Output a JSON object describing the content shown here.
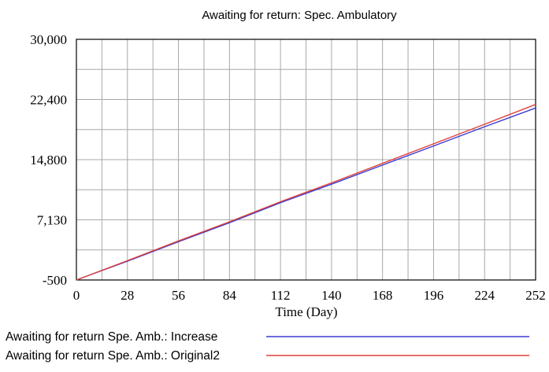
{
  "chart_data": {
    "type": "line",
    "title": "Awaiting for return: Spec. Ambulatory",
    "xlabel": "Time (Day)",
    "ylabel": "",
    "xlim": [
      0,
      252
    ],
    "ylim": [
      -500,
      30000
    ],
    "x_ticks": [
      "0",
      "28",
      "56",
      "84",
      "112",
      "140",
      "168",
      "196",
      "224",
      "252"
    ],
    "y_ticks": [
      "30,000",
      "22,400",
      "14,800",
      "7,130",
      "-500"
    ],
    "grid": true,
    "legend_position": "bottom",
    "series": [
      {
        "name": "Awaiting for return Spe. Amb.: Increase",
        "color": "#3b3bd1",
        "x": [
          0,
          28,
          56,
          84,
          112,
          140,
          168,
          196,
          224,
          252
        ],
        "y": [
          -500,
          1880,
          4350,
          6760,
          9300,
          11640,
          14060,
          16480,
          18930,
          21300
        ]
      },
      {
        "name": "Awaiting for return Spe. Amb.: Original2",
        "color": "#e0413b",
        "x": [
          0,
          28,
          56,
          84,
          112,
          140,
          168,
          196,
          224,
          252
        ],
        "y": [
          -500,
          1950,
          4450,
          6880,
          9420,
          11810,
          14280,
          16750,
          19240,
          21750
        ]
      }
    ]
  }
}
